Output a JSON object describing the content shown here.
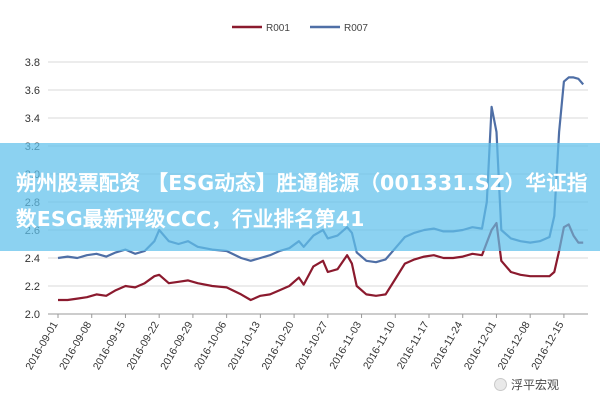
{
  "banner": {
    "text": "朔州股票配资 【ESG动态】胜通能源（001331.SZ）华证指数ESG最新评级CCC，行业排名第41"
  },
  "watermark": {
    "text": "浮平宏观",
    "icon": "wechat-icon"
  },
  "colors": {
    "r001": "#8b1a2e",
    "r007": "#4f6fa6",
    "banner": "#60c0eb",
    "grid": "#d9d9d9"
  },
  "chart_data": {
    "type": "line",
    "legend_position": "top",
    "grid": true,
    "ylim": [
      2.0,
      3.8
    ],
    "yticks": [
      "2.0",
      "2.2",
      "2.4",
      "2.6",
      "2.8",
      "3.0",
      "3.2",
      "3.4",
      "3.6",
      "3.8"
    ],
    "xticks": [
      "2016-09-01",
      "2016-09-08",
      "2016-09-15",
      "2016-09-22",
      "2016-09-29",
      "2016-10-06",
      "2016-10-13",
      "2016-10-20",
      "2016-10-27",
      "2016-11-03",
      "2016-11-10",
      "2016-11-17",
      "2016-11-24",
      "2016-12-01",
      "2016-12-08",
      "2016-12-15"
    ],
    "series": [
      {
        "name": "R001",
        "color": "#8b1a2e",
        "points": [
          [
            "2016-09-01",
            2.1
          ],
          [
            "2016-09-03",
            2.1
          ],
          [
            "2016-09-05",
            2.11
          ],
          [
            "2016-09-07",
            2.12
          ],
          [
            "2016-09-09",
            2.14
          ],
          [
            "2016-09-11",
            2.13
          ],
          [
            "2016-09-13",
            2.17
          ],
          [
            "2016-09-15",
            2.2
          ],
          [
            "2016-09-17",
            2.19
          ],
          [
            "2016-09-19",
            2.22
          ],
          [
            "2016-09-21",
            2.27
          ],
          [
            "2016-09-22",
            2.28
          ],
          [
            "2016-09-24",
            2.22
          ],
          [
            "2016-09-26",
            2.23
          ],
          [
            "2016-09-28",
            2.24
          ],
          [
            "2016-09-30",
            2.22
          ],
          [
            "2016-10-03",
            2.2
          ],
          [
            "2016-10-06",
            2.19
          ],
          [
            "2016-10-09",
            2.14
          ],
          [
            "2016-10-11",
            2.1
          ],
          [
            "2016-10-13",
            2.13
          ],
          [
            "2016-10-15",
            2.14
          ],
          [
            "2016-10-17",
            2.17
          ],
          [
            "2016-10-19",
            2.2
          ],
          [
            "2016-10-21",
            2.26
          ],
          [
            "2016-10-22",
            2.21
          ],
          [
            "2016-10-24",
            2.34
          ],
          [
            "2016-10-26",
            2.38
          ],
          [
            "2016-10-27",
            2.3
          ],
          [
            "2016-10-29",
            2.32
          ],
          [
            "2016-10-31",
            2.42
          ],
          [
            "2016-11-01",
            2.36
          ],
          [
            "2016-11-02",
            2.2
          ],
          [
            "2016-11-04",
            2.14
          ],
          [
            "2016-11-06",
            2.13
          ],
          [
            "2016-11-08",
            2.14
          ],
          [
            "2016-11-10",
            2.25
          ],
          [
            "2016-11-12",
            2.36
          ],
          [
            "2016-11-14",
            2.39
          ],
          [
            "2016-11-16",
            2.41
          ],
          [
            "2016-11-18",
            2.42
          ],
          [
            "2016-11-20",
            2.4
          ],
          [
            "2016-11-22",
            2.4
          ],
          [
            "2016-11-24",
            2.41
          ],
          [
            "2016-11-26",
            2.43
          ],
          [
            "2016-11-28",
            2.42
          ],
          [
            "2016-11-30",
            2.6
          ],
          [
            "2016-12-01",
            2.65
          ],
          [
            "2016-12-02",
            2.38
          ],
          [
            "2016-12-04",
            2.3
          ],
          [
            "2016-12-06",
            2.28
          ],
          [
            "2016-12-08",
            2.27
          ],
          [
            "2016-12-10",
            2.27
          ],
          [
            "2016-12-12",
            2.27
          ],
          [
            "2016-12-13",
            2.3
          ],
          [
            "2016-12-14",
            2.45
          ],
          [
            "2016-12-15",
            2.62
          ],
          [
            "2016-12-16",
            2.64
          ],
          [
            "2016-12-17",
            2.56
          ],
          [
            "2016-12-18",
            2.51
          ],
          [
            "2016-12-19",
            2.51
          ]
        ]
      },
      {
        "name": "R007",
        "color": "#4f6fa6",
        "points": [
          [
            "2016-09-01",
            2.4
          ],
          [
            "2016-09-03",
            2.41
          ],
          [
            "2016-09-05",
            2.4
          ],
          [
            "2016-09-07",
            2.42
          ],
          [
            "2016-09-09",
            2.43
          ],
          [
            "2016-09-11",
            2.41
          ],
          [
            "2016-09-13",
            2.44
          ],
          [
            "2016-09-15",
            2.46
          ],
          [
            "2016-09-17",
            2.43
          ],
          [
            "2016-09-19",
            2.45
          ],
          [
            "2016-09-21",
            2.52
          ],
          [
            "2016-09-22",
            2.6
          ],
          [
            "2016-09-24",
            2.52
          ],
          [
            "2016-09-26",
            2.5
          ],
          [
            "2016-09-28",
            2.52
          ],
          [
            "2016-09-30",
            2.48
          ],
          [
            "2016-10-03",
            2.46
          ],
          [
            "2016-10-06",
            2.45
          ],
          [
            "2016-10-09",
            2.4
          ],
          [
            "2016-10-11",
            2.38
          ],
          [
            "2016-10-13",
            2.4
          ],
          [
            "2016-10-15",
            2.42
          ],
          [
            "2016-10-17",
            2.45
          ],
          [
            "2016-10-19",
            2.47
          ],
          [
            "2016-10-21",
            2.52
          ],
          [
            "2016-10-22",
            2.48
          ],
          [
            "2016-10-24",
            2.56
          ],
          [
            "2016-10-26",
            2.6
          ],
          [
            "2016-10-27",
            2.54
          ],
          [
            "2016-10-29",
            2.56
          ],
          [
            "2016-10-31",
            2.62
          ],
          [
            "2016-11-01",
            2.58
          ],
          [
            "2016-11-02",
            2.44
          ],
          [
            "2016-11-04",
            2.38
          ],
          [
            "2016-11-06",
            2.37
          ],
          [
            "2016-11-08",
            2.39
          ],
          [
            "2016-11-10",
            2.47
          ],
          [
            "2016-11-12",
            2.55
          ],
          [
            "2016-11-14",
            2.58
          ],
          [
            "2016-11-16",
            2.6
          ],
          [
            "2016-11-18",
            2.61
          ],
          [
            "2016-11-20",
            2.59
          ],
          [
            "2016-11-22",
            2.59
          ],
          [
            "2016-11-24",
            2.6
          ],
          [
            "2016-11-26",
            2.62
          ],
          [
            "2016-11-28",
            2.61
          ],
          [
            "2016-11-29",
            2.8
          ],
          [
            "2016-11-30",
            3.48
          ],
          [
            "2016-12-01",
            3.3
          ],
          [
            "2016-12-02",
            2.6
          ],
          [
            "2016-12-04",
            2.54
          ],
          [
            "2016-12-06",
            2.52
          ],
          [
            "2016-12-08",
            2.51
          ],
          [
            "2016-12-10",
            2.52
          ],
          [
            "2016-12-12",
            2.55
          ],
          [
            "2016-12-13",
            2.7
          ],
          [
            "2016-12-14",
            3.3
          ],
          [
            "2016-12-15",
            3.66
          ],
          [
            "2016-12-16",
            3.69
          ],
          [
            "2016-12-17",
            3.69
          ],
          [
            "2016-12-18",
            3.68
          ],
          [
            "2016-12-19",
            3.64
          ]
        ]
      }
    ]
  }
}
